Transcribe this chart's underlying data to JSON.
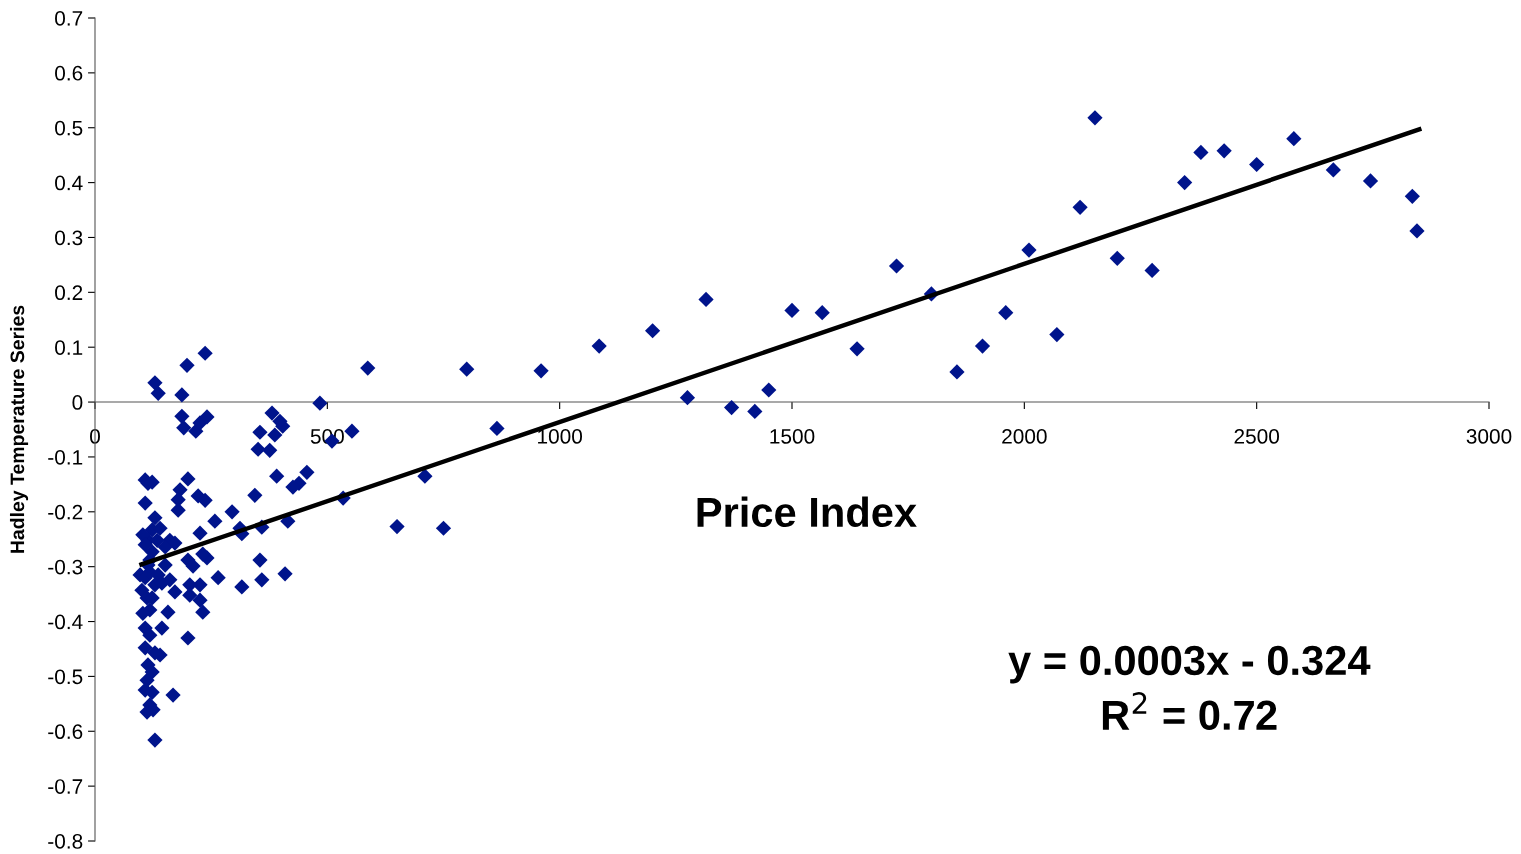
{
  "chart_data": {
    "type": "scatter",
    "xlabel": "Price Index",
    "ylabel": "Hadley Temperature Series",
    "xlim": [
      0,
      3000
    ],
    "xticks": [
      0,
      500,
      1000,
      1500,
      2000,
      2500,
      3000
    ],
    "ylim": [
      -0.8,
      0.7
    ],
    "yticks": [
      -0.8,
      -0.7,
      -0.6,
      -0.5,
      -0.4,
      -0.3,
      -0.2,
      -0.1,
      0,
      0.1,
      0.2,
      0.3,
      0.4,
      0.5,
      0.6,
      0.7
    ],
    "grid": false,
    "legend": false,
    "marker": "diamond",
    "series": [
      {
        "color": "#00148c",
        "x": [
          2152,
          2380,
          2430,
          2345,
          2500,
          2580,
          2665,
          2745,
          2835,
          2845,
          2120,
          2200,
          2275,
          2010,
          2070,
          1960,
          1910,
          1855,
          1800,
          1725,
          1640,
          1565,
          1500,
          1450,
          1420,
          1370,
          1275,
          1315,
          1200,
          1085,
          960,
          865,
          800,
          750,
          710,
          650,
          484,
          587,
          553,
          510,
          534,
          456,
          439,
          426,
          415,
          409,
          359,
          355,
          359,
          344,
          316,
          312,
          316,
          295,
          265,
          258,
          404,
          398,
          381,
          387,
          391,
          376,
          355,
          351,
          237,
          198,
          187,
          187,
          191,
          217,
          226,
          241,
          129,
          136,
          200,
          183,
          179,
          179,
          222,
          237,
          226,
          241,
          232,
          200,
          211,
          226,
          226,
          232,
          204,
          204,
          200,
          151,
          161,
          172,
          157,
          144,
          168,
          140,
          161,
          172,
          151,
          108,
          114,
          123,
          108,
          129,
          123,
          114,
          103,
          123,
          114,
          97,
          108,
          118,
          136,
          129,
          101,
          112,
          118,
          103,
          108,
          118,
          108,
          129,
          114,
          123,
          112,
          108,
          123,
          118,
          112,
          125,
          129,
          118,
          108,
          140,
          134,
          123,
          144
        ],
        "values": [
          0.518,
          0.455,
          0.458,
          0.4,
          0.433,
          0.48,
          0.423,
          0.403,
          0.375,
          0.312,
          0.355,
          0.262,
          0.24,
          0.277,
          0.123,
          0.163,
          0.102,
          0.055,
          0.197,
          0.248,
          0.097,
          0.163,
          0.167,
          0.022,
          -0.017,
          -0.01,
          0.008,
          0.187,
          0.13,
          0.102,
          0.057,
          -0.048,
          0.06,
          -0.23,
          -0.135,
          -0.227,
          -0.002,
          0.062,
          -0.053,
          -0.071,
          -0.175,
          -0.128,
          -0.148,
          -0.155,
          -0.217,
          -0.313,
          -0.324,
          -0.288,
          -0.228,
          -0.17,
          -0.24,
          -0.23,
          -0.337,
          -0.2,
          -0.32,
          -0.217,
          -0.044,
          -0.035,
          -0.02,
          -0.06,
          -0.135,
          -0.088,
          -0.055,
          -0.086,
          0.089,
          0.067,
          0.013,
          -0.026,
          -0.047,
          -0.053,
          -0.038,
          -0.027,
          0.035,
          0.016,
          -0.14,
          -0.16,
          -0.178,
          -0.197,
          -0.171,
          -0.179,
          -0.239,
          -0.284,
          -0.277,
          -0.288,
          -0.299,
          -0.333,
          -0.361,
          -0.383,
          -0.333,
          -0.352,
          -0.43,
          -0.297,
          -0.324,
          -0.346,
          -0.383,
          -0.412,
          -0.534,
          -0.461,
          -0.252,
          -0.257,
          -0.264,
          -0.142,
          -0.148,
          -0.146,
          -0.184,
          -0.211,
          -0.233,
          -0.252,
          -0.242,
          -0.273,
          -0.297,
          -0.315,
          -0.32,
          -0.31,
          -0.315,
          -0.333,
          -0.343,
          -0.357,
          -0.379,
          -0.385,
          -0.412,
          -0.425,
          -0.448,
          -0.457,
          -0.479,
          -0.492,
          -0.507,
          -0.525,
          -0.529,
          -0.552,
          -0.565,
          -0.561,
          -0.616,
          -0.288,
          -0.26,
          -0.23,
          -0.252,
          -0.357,
          -0.33
        ]
      },
      {
        "type": "line",
        "color": "#000000",
        "marker": "none",
        "line_style": "solid",
        "x": [
          100,
          2850
        ],
        "values": [
          -0.296,
          0.497
        ]
      }
    ],
    "annotations": [
      "y = 0.0003x - 0.324",
      "R$^{2}$ = 0.72"
    ]
  }
}
